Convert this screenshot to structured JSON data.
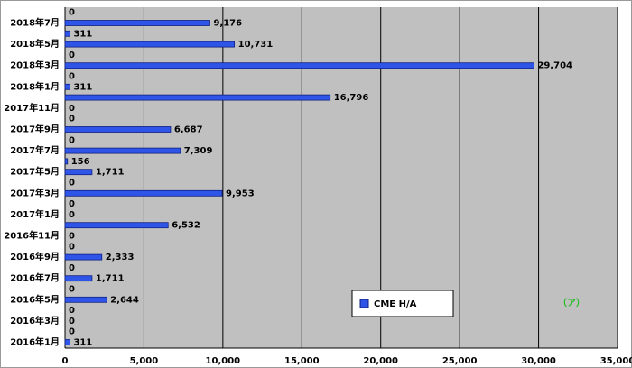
{
  "chart_data": {
    "type": "bar",
    "orientation": "horizontal",
    "categories": [
      "2016年1月",
      null,
      "2016年3月",
      null,
      "2016年5月",
      null,
      "2016年7月",
      null,
      "2016年9月",
      null,
      "2016年11月",
      null,
      "2017年1月",
      null,
      "2017年3月",
      null,
      "2017年5月",
      null,
      "2017年7月",
      null,
      "2017年9月",
      null,
      "2017年11月",
      null,
      "2018年1月",
      null,
      "2018年3月",
      null,
      "2018年5月",
      null,
      "2018年7月",
      null
    ],
    "series": [
      {
        "name": "CME H/A",
        "color": "#2f55e8",
        "values": [
          311,
          0,
          0,
          0,
          2644,
          0,
          1711,
          0,
          2333,
          0,
          0,
          6532,
          0,
          0,
          9953,
          0,
          1711,
          156,
          7309,
          0,
          6687,
          0,
          0,
          16796,
          311,
          0,
          29704,
          0,
          10731,
          311,
          9176,
          0
        ],
        "value_labels": [
          "311",
          "0",
          "0",
          "0",
          "2,644",
          "0",
          "1,711",
          "0",
          "2,333",
          "0",
          "0",
          "6,532",
          "0",
          "0",
          "9,953",
          "0",
          "1,711",
          "156",
          "7,309",
          "0",
          "6,687",
          "0",
          "0",
          "16,796",
          "311",
          "0",
          "29,704",
          "0",
          "10,731",
          "311",
          "9,176",
          "0"
        ]
      }
    ],
    "xlim": [
      0,
      35000
    ],
    "xticks": [
      0,
      {
        "value": 5000,
        "label": "5,000"
      },
      {
        "value": 10000,
        "label": "10,000"
      },
      {
        "value": 15000,
        "label": "15,000"
      },
      {
        "value": 20000,
        "label": "20,000"
      },
      {
        "value": 25000,
        "label": "25,000"
      },
      {
        "value": 30000,
        "label": "30,000"
      },
      {
        "value": 35000,
        "label": "35,000"
      }
    ],
    "grid": true,
    "legend": "lower-center",
    "annotation": "（ア）"
  }
}
